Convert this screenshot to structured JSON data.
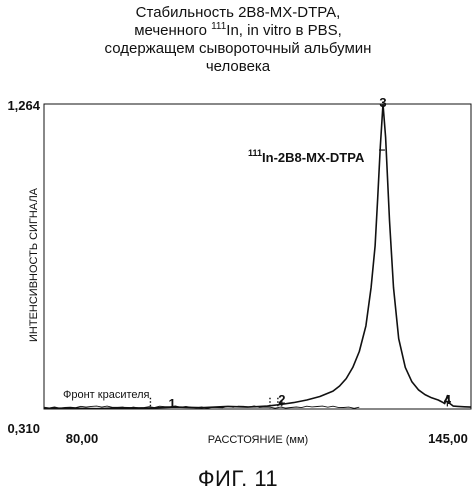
{
  "chart_data": {
    "type": "line",
    "title_lines": [
      "Стабильность 2B8-MX-DTPA,",
      "меченного ",
      "In, in vitro в PBS,",
      "содержащем сывороточный альбумин",
      "человека"
    ],
    "title_superscript": "111",
    "xlabel": "РАССТОЯНИЕ (мм)",
    "ylabel": "ИНТЕНСИВНОСТЬ СИГНАЛА",
    "x_tick_labels": [
      "80,00",
      "145,00"
    ],
    "y_tick_labels": [
      "0,310",
      "1,264"
    ],
    "xlim": [
      80,
      145
    ],
    "ylim": [
      0.31,
      1.264
    ],
    "series": [
      {
        "x": [
          80,
          84,
          88,
          92,
          96,
          100,
          104,
          108,
          111,
          114,
          116,
          118,
          120,
          122,
          124,
          125,
          126,
          127,
          128,
          129,
          129.8,
          130.4,
          130.8,
          131.2,
          131.6,
          132,
          132.6,
          133.2,
          134,
          135,
          136,
          137,
          138,
          139,
          140,
          140.6,
          141,
          141.4,
          141.8,
          142.3,
          143,
          144,
          145
        ],
        "y": [
          0.312,
          0.313,
          0.311,
          0.314,
          0.313,
          0.316,
          0.314,
          0.318,
          0.316,
          0.319,
          0.324,
          0.33,
          0.338,
          0.349,
          0.366,
          0.382,
          0.405,
          0.44,
          0.49,
          0.57,
          0.69,
          0.82,
          0.97,
          1.13,
          1.264,
          1.16,
          0.9,
          0.69,
          0.53,
          0.44,
          0.395,
          0.37,
          0.355,
          0.345,
          0.338,
          0.332,
          0.327,
          0.352,
          0.327,
          0.319,
          0.318,
          0.317,
          0.316
        ]
      }
    ],
    "annotations": [
      {
        "label": "Фронт красителя"
      },
      {
        "label": "1",
        "x": 99.5
      },
      {
        "label": "2",
        "x": 116.2
      },
      {
        "label": "3",
        "x": 131.6
      },
      {
        "label": "4",
        "x": 141.4
      },
      {
        "label_prefix": "111",
        "label": "In-2B8-MX-DTPA",
        "x": 131.9,
        "y": 1.12
      }
    ],
    "dotted_markers_x": [
      96.2,
      114.4,
      115.6
    ],
    "grid": false
  },
  "figure_label": "ФИГ. 11"
}
